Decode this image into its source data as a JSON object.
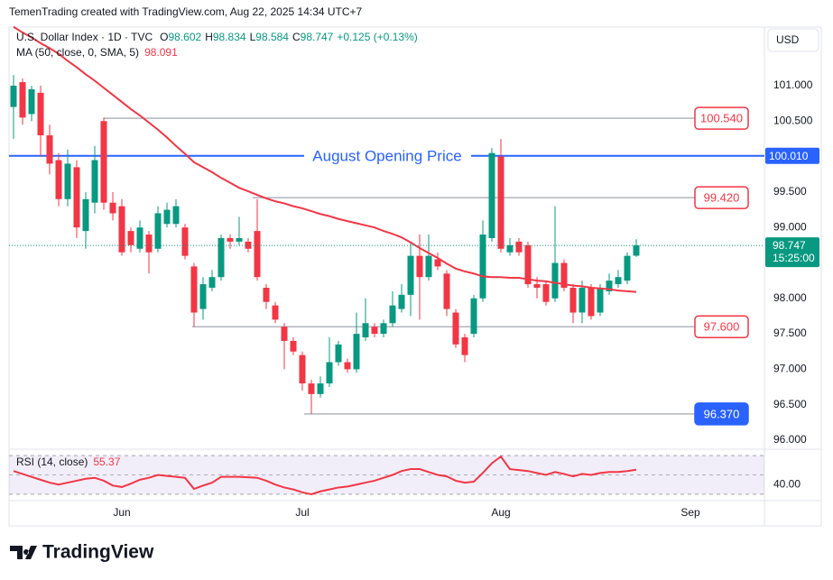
{
  "chart_data": {
    "type": "candlestick",
    "attribution": "TemenTrading created with TradingView.com, Aug 22, 2025 14:34 UTC+7",
    "title": "U.S. Dollar Index · 1D · TVC",
    "ohlc_letters": [
      "O",
      "H",
      "L",
      "C"
    ],
    "change_label": "+0.125 (+0.13%)",
    "currency": "USD",
    "countdown": "15:25:00",
    "brand": "TradingView",
    "up_color": "#089981",
    "down_color": "#f23645",
    "categories": [
      null,
      null,
      null,
      null,
      null,
      null,
      null,
      null,
      null,
      null,
      null,
      null,
      "Jun",
      null,
      null,
      null,
      null,
      null,
      null,
      null,
      null,
      null,
      null,
      null,
      null,
      null,
      null,
      null,
      null,
      null,
      null,
      null,
      "Jul",
      null,
      null,
      null,
      null,
      null,
      null,
      null,
      null,
      null,
      null,
      null,
      null,
      null,
      null,
      null,
      null,
      null,
      null,
      null,
      null,
      null,
      "Aug",
      null,
      null,
      null,
      null,
      null,
      null,
      null,
      null,
      null,
      null,
      null,
      null,
      null,
      null,
      null,
      null,
      null,
      null,
      null,
      null,
      "Sep"
    ],
    "open": [
      100.7,
      101.05,
      100.6,
      100.9,
      100.3,
      99.95,
      99.4,
      99.85,
      98.95,
      99.35,
      100.5,
      99.35,
      99.3,
      98.95,
      98.7,
      98.9,
      98.7,
      99.05,
      99.05,
      99.0,
      98.45,
      97.85,
      98.15,
      98.3,
      98.85,
      98.8,
      98.8,
      98.95,
      98.15,
      97.9,
      97.6,
      97.4,
      97.2,
      96.8,
      96.65,
      96.8,
      97.1,
      97.1,
      97.0,
      97.45,
      97.6,
      97.5,
      97.65,
      97.85,
      98.05,
      98.6,
      98.3,
      98.55,
      98.35,
      97.8,
      97.45,
      97.5,
      98.0,
      98.85,
      100.0,
      98.65,
      98.8,
      98.75,
      98.2,
      98.2,
      98.0,
      98.5,
      98.15,
      97.8,
      98.15,
      97.8,
      98.1,
      98.2,
      98.25,
      98.602,
      null,
      null,
      null,
      null,
      null,
      null
    ],
    "high": [
      101.15,
      101.1,
      101.0,
      101.0,
      100.45,
      100.05,
      100.1,
      99.95,
      99.5,
      100.15,
      100.55,
      99.5,
      99.4,
      99.0,
      99.1,
      98.95,
      99.3,
      99.35,
      99.4,
      99.05,
      98.5,
      98.3,
      98.4,
      98.9,
      98.9,
      99.15,
      98.85,
      99.4,
      98.2,
      97.95,
      97.65,
      97.45,
      97.25,
      96.85,
      96.9,
      97.45,
      97.4,
      97.15,
      97.8,
      98.0,
      97.65,
      97.7,
      98.1,
      98.2,
      98.8,
      98.9,
      98.9,
      98.65,
      98.4,
      97.85,
      97.5,
      98.05,
      99.1,
      100.12,
      100.25,
      98.85,
      98.85,
      98.8,
      98.3,
      98.25,
      99.3,
      98.55,
      98.2,
      98.25,
      98.2,
      98.2,
      98.35,
      98.4,
      98.65,
      98.834,
      null,
      null,
      null,
      null,
      null,
      null
    ],
    "low": [
      100.25,
      100.45,
      100.5,
      100.0,
      99.75,
      99.3,
      99.3,
      98.85,
      98.7,
      99.2,
      99.25,
      99.1,
      98.6,
      98.65,
      98.65,
      98.35,
      98.65,
      99.0,
      99.0,
      98.55,
      97.6,
      97.7,
      98.1,
      98.25,
      98.7,
      98.75,
      98.65,
      98.25,
      97.85,
      97.65,
      97.0,
      97.2,
      96.7,
      96.37,
      96.6,
      96.75,
      97.05,
      96.95,
      96.95,
      97.4,
      97.45,
      97.45,
      97.6,
      97.8,
      97.75,
      97.7,
      98.25,
      98.4,
      97.75,
      97.3,
      97.1,
      97.45,
      97.95,
      98.8,
      98.65,
      98.6,
      98.6,
      98.15,
      98.0,
      97.9,
      97.95,
      98.1,
      97.65,
      97.65,
      97.7,
      97.75,
      98.05,
      98.15,
      98.2,
      98.584,
      null,
      null,
      null,
      null,
      null,
      null
    ],
    "close": [
      101.0,
      100.55,
      100.95,
      100.3,
      99.9,
      99.4,
      99.9,
      99.0,
      99.4,
      99.95,
      99.35,
      99.2,
      98.65,
      98.75,
      99.0,
      98.65,
      99.2,
      99.25,
      99.3,
      98.6,
      97.8,
      98.2,
      98.3,
      98.85,
      98.8,
      98.85,
      98.7,
      98.3,
      97.95,
      97.7,
      97.4,
      97.25,
      96.8,
      96.65,
      96.8,
      97.1,
      97.35,
      97.0,
      97.5,
      97.65,
      97.5,
      97.65,
      97.9,
      98.05,
      98.6,
      98.3,
      98.6,
      98.45,
      97.85,
      97.35,
      97.2,
      98.0,
      98.9,
      100.05,
      98.7,
      98.75,
      98.65,
      98.2,
      98.15,
      97.95,
      98.5,
      98.15,
      97.8,
      98.15,
      97.75,
      98.15,
      98.25,
      98.3,
      98.6,
      98.747,
      null,
      null,
      null,
      null,
      null,
      null
    ],
    "ma": {
      "name": "MA (50, close, 0, SMA, 5)",
      "color": "#f23645",
      "values": [
        101.83,
        101.75,
        101.68,
        101.6,
        101.53,
        101.45,
        101.35,
        101.26,
        101.16,
        101.07,
        100.97,
        100.87,
        100.77,
        100.67,
        100.58,
        100.48,
        100.38,
        100.27,
        100.15,
        100.04,
        99.92,
        99.85,
        99.78,
        99.7,
        99.63,
        99.56,
        99.51,
        99.46,
        99.41,
        99.37,
        99.34,
        99.3,
        99.27,
        99.23,
        99.19,
        99.16,
        99.12,
        99.09,
        99.06,
        99.03,
        99.0,
        98.95,
        98.91,
        98.86,
        98.79,
        98.71,
        98.64,
        98.57,
        98.49,
        98.42,
        98.38,
        98.35,
        98.31,
        98.3,
        98.3,
        98.29,
        98.29,
        98.27,
        98.25,
        98.24,
        98.22,
        98.2,
        98.18,
        98.17,
        98.15,
        98.14,
        98.13,
        98.11,
        98.1,
        98.091,
        null,
        null,
        null,
        null,
        null,
        null
      ]
    },
    "ylim": [
      95.885,
      101.827
    ],
    "yticks": [
      {
        "value": 96,
        "label": "96.000"
      },
      {
        "value": 96.5,
        "label": "96.500"
      },
      {
        "value": 97,
        "label": "97.000"
      },
      {
        "value": 97.5,
        "label": "97.500"
      },
      {
        "value": 98,
        "label": "98.000"
      },
      {
        "value": 98.5,
        "label": "98.500"
      },
      {
        "value": 99,
        "label": "99.000"
      },
      {
        "value": 99.5,
        "label": "99.500"
      },
      {
        "value": 100,
        "label": "100.000"
      },
      {
        "value": 100.5,
        "label": "100.500"
      },
      {
        "value": 101,
        "label": "101.000"
      }
    ],
    "opening_price": {
      "value": 100.01,
      "label": "100.010",
      "color": "#2962ff",
      "annotation": "August Opening Price"
    },
    "price_lines": [
      {
        "value": 100.54,
        "label": "100.540",
        "color": "#f23645",
        "box": "outline"
      },
      {
        "value": 99.42,
        "label": "99.420",
        "color": "#f23645",
        "box": "outline"
      },
      {
        "value": 97.6,
        "label": "97.600",
        "color": "#f23645",
        "box": "outline"
      },
      {
        "value": 96.37,
        "label": "96.370",
        "color": "#2962ff",
        "box": "filled"
      }
    ],
    "rsi": {
      "name": "RSI (14, close)",
      "color": "#f23645",
      "band_color": "#7e57c2",
      "values": [
        54,
        51,
        48,
        45,
        42,
        40,
        42,
        44,
        46,
        47,
        44,
        39,
        37.5,
        41,
        45,
        47,
        50,
        49,
        48,
        47,
        35.5,
        39,
        42,
        48,
        48,
        48,
        47.5,
        47,
        44,
        40,
        37,
        35,
        32,
        30,
        33,
        35,
        37,
        38,
        40,
        42,
        44,
        47,
        50,
        54,
        56,
        56,
        53,
        50,
        48.5,
        44,
        42,
        43,
        52,
        62,
        69,
        56,
        55,
        54,
        52,
        50,
        53,
        51,
        48.5,
        51,
        50,
        52,
        53,
        53,
        54,
        55.37,
        null,
        null,
        null,
        null,
        null,
        null
      ],
      "ylim": [
        28.1,
        71.9
      ],
      "yticks": [
        {
          "value": 40,
          "label": "40.00"
        }
      ],
      "levels": [
        30,
        50,
        70
      ]
    }
  }
}
